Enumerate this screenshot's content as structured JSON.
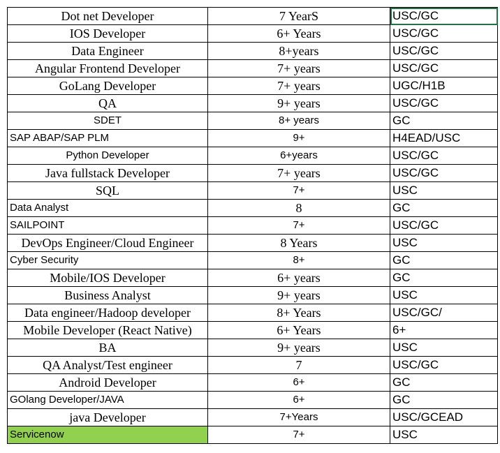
{
  "table": {
    "rows": [
      [
        "Dot net Developer",
        "7 YearS",
        "USC/GC"
      ],
      [
        "IOS Developer",
        "6+ Years",
        "USC/GC"
      ],
      [
        "Data Engineer",
        "8+years",
        "USC/GC"
      ],
      [
        "Angular Frontend Developer",
        "7+ years",
        "USC/GC"
      ],
      [
        "GoLang Developer",
        "7+ years",
        "UGC/H1B"
      ],
      [
        "QA",
        "9+ years",
        "USC/GC"
      ],
      [
        "SDET",
        "8+ years",
        "GC"
      ],
      [
        "SAP ABAP/SAP PLM",
        "9+",
        "H4EAD/USC"
      ],
      [
        "Python Developer",
        "6+years",
        "USC/GC"
      ],
      [
        "Java fullstack Developer",
        "7+ years",
        "USC/GC"
      ],
      [
        "SQL",
        "7+",
        "USC"
      ],
      [
        "Data Analyst",
        "8",
        "GC"
      ],
      [
        "SAILPOINT",
        "7+",
        "USC/GC"
      ],
      [
        "DevOps Engineer/Cloud Engineer",
        "8 Years",
        "USC"
      ],
      [
        "Cyber Security",
        "8+",
        "GC"
      ],
      [
        "Mobile/IOS Developer",
        "6+ years",
        "GC"
      ],
      [
        "Business Analyst",
        "9+ years",
        "USC"
      ],
      [
        "Data engineer/Hadoop developer",
        "8+ Years",
        "USC/GC/"
      ],
      [
        "Mobile Developer (React Native)",
        "6+ Years",
        "6+"
      ],
      [
        "BA",
        "9+ years",
        "USC"
      ],
      [
        "QA Analyst/Test engineer",
        "7",
        "USC/GC"
      ],
      [
        "Android Developer",
        "6+",
        "GC"
      ],
      [
        "GOlang Developer/JAVA",
        "6+",
        "GC"
      ],
      [
        "java Developer",
        "7+Years",
        "USC/GCEAD"
      ],
      [
        "Servicenow",
        "7+",
        "USC"
      ]
    ]
  }
}
